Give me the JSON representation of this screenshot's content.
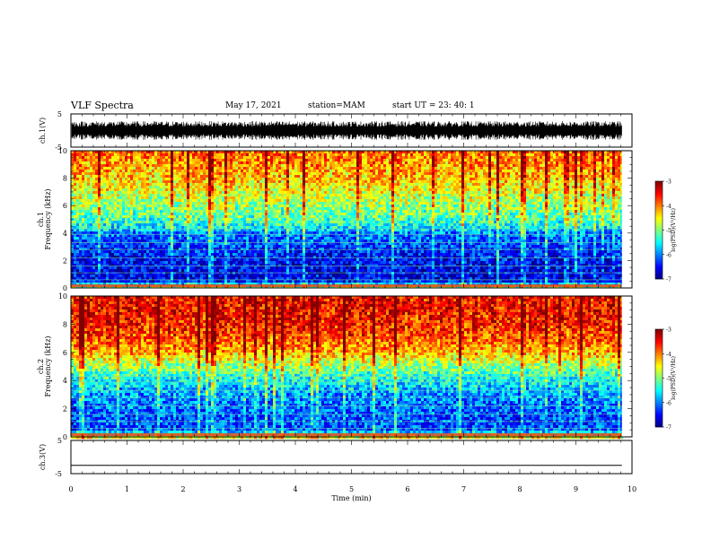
{
  "header": {
    "title": "VLF Spectra",
    "date": "May 17, 2021",
    "station": "station=MAM",
    "start": "start  UT  =   23: 40: 1"
  },
  "chart_data": [
    {
      "type": "line",
      "panel": "ch1-waveform",
      "ylabel": "ch.1(V)",
      "yticks": [
        "5",
        "-5"
      ],
      "ylim": [
        -5,
        5
      ],
      "signal": "dense noise between about -2.5 and 2.5"
    },
    {
      "type": "heatmap",
      "panel": "ch1-spectrogram",
      "ylabel": "ch.1\nFrequency (kHz)",
      "yticks": [
        "0",
        "2",
        "4",
        "6",
        "8",
        "10"
      ],
      "ylim": [
        0,
        10
      ],
      "xlim": [
        0,
        10
      ],
      "colorbar": {
        "label": "log(PSD)(V²/Hz)",
        "ticks": [
          "-3",
          "-4",
          "-5",
          "-6",
          "-7"
        ],
        "range": [
          -7,
          -3
        ]
      },
      "profile_khz": [
        0,
        0.5,
        1,
        2,
        3,
        4,
        4.3,
        5,
        6,
        7,
        8,
        9,
        10
      ],
      "profile_level": [
        -4.5,
        -6.5,
        -6.6,
        -6.5,
        -6.3,
        -6.0,
        -5.6,
        -5.2,
        -4.9,
        -4.6,
        -4.3,
        -4.1,
        -3.9
      ]
    },
    {
      "type": "heatmap",
      "panel": "ch2-spectrogram",
      "ylabel": "ch.2\nFrequency (kHz)",
      "yticks": [
        "0",
        "2",
        "4",
        "6",
        "8",
        "10"
      ],
      "ylim": [
        0,
        10
      ],
      "xlim": [
        0,
        10
      ],
      "colorbar": {
        "label": "log(PSD)(V²/Hz)",
        "ticks": [
          "-3",
          "-4",
          "-5",
          "-6",
          "-7"
        ],
        "range": [
          -7,
          -3
        ]
      },
      "profile_khz": [
        0,
        0.5,
        1,
        2,
        3,
        4,
        5,
        6,
        7,
        8,
        9,
        10
      ],
      "profile_level": [
        -4.5,
        -6.2,
        -6.2,
        -6.1,
        -5.9,
        -5.5,
        -4.9,
        -4.2,
        -3.8,
        -3.6,
        -3.5,
        -3.5
      ]
    },
    {
      "type": "line",
      "panel": "ch3-waveform",
      "ylabel": "ch.3(V)",
      "yticks": [
        "5",
        "-5"
      ],
      "ylim": [
        -5,
        5
      ],
      "y": [
        -2.5,
        -2.5
      ]
    }
  ],
  "xaxis": {
    "label": "Time (min)",
    "ticks": [
      "0",
      "1",
      "2",
      "3",
      "4",
      "5",
      "6",
      "7",
      "8",
      "9",
      "10"
    ],
    "xlim": [
      0,
      10
    ],
    "data_end": 9.82
  }
}
